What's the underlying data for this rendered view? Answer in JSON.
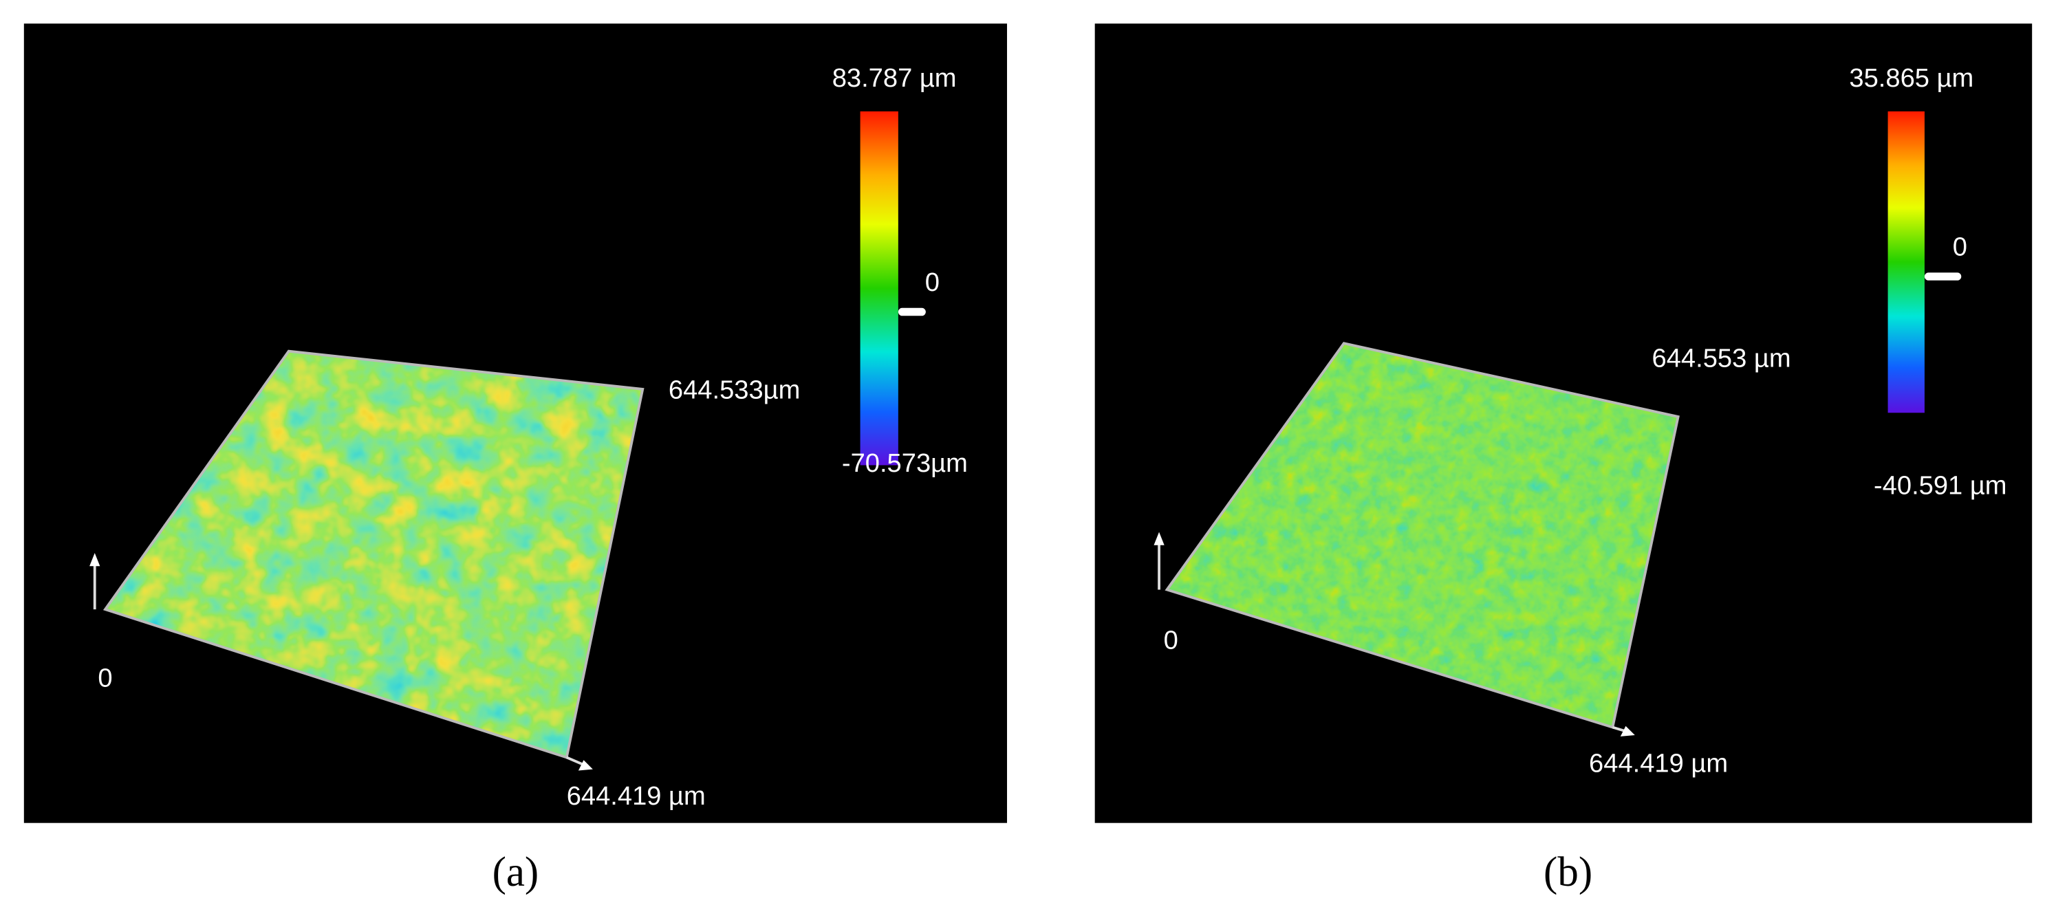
{
  "panels": [
    {
      "caption": "(a)",
      "colorbar": {
        "max": "83.787 µm",
        "zero": "0",
        "min": "-70.573µm"
      },
      "axes": {
        "y_extent": "644.533µm",
        "x_extent": "644.419 µm",
        "origin": "0"
      }
    },
    {
      "caption": "(b)",
      "colorbar": {
        "max": "35.865 µm",
        "zero": "0",
        "min": "-40.591 µm"
      },
      "axes": {
        "y_extent": "644.553 µm",
        "x_extent": "644.419 µm",
        "origin": "0"
      }
    }
  ]
}
